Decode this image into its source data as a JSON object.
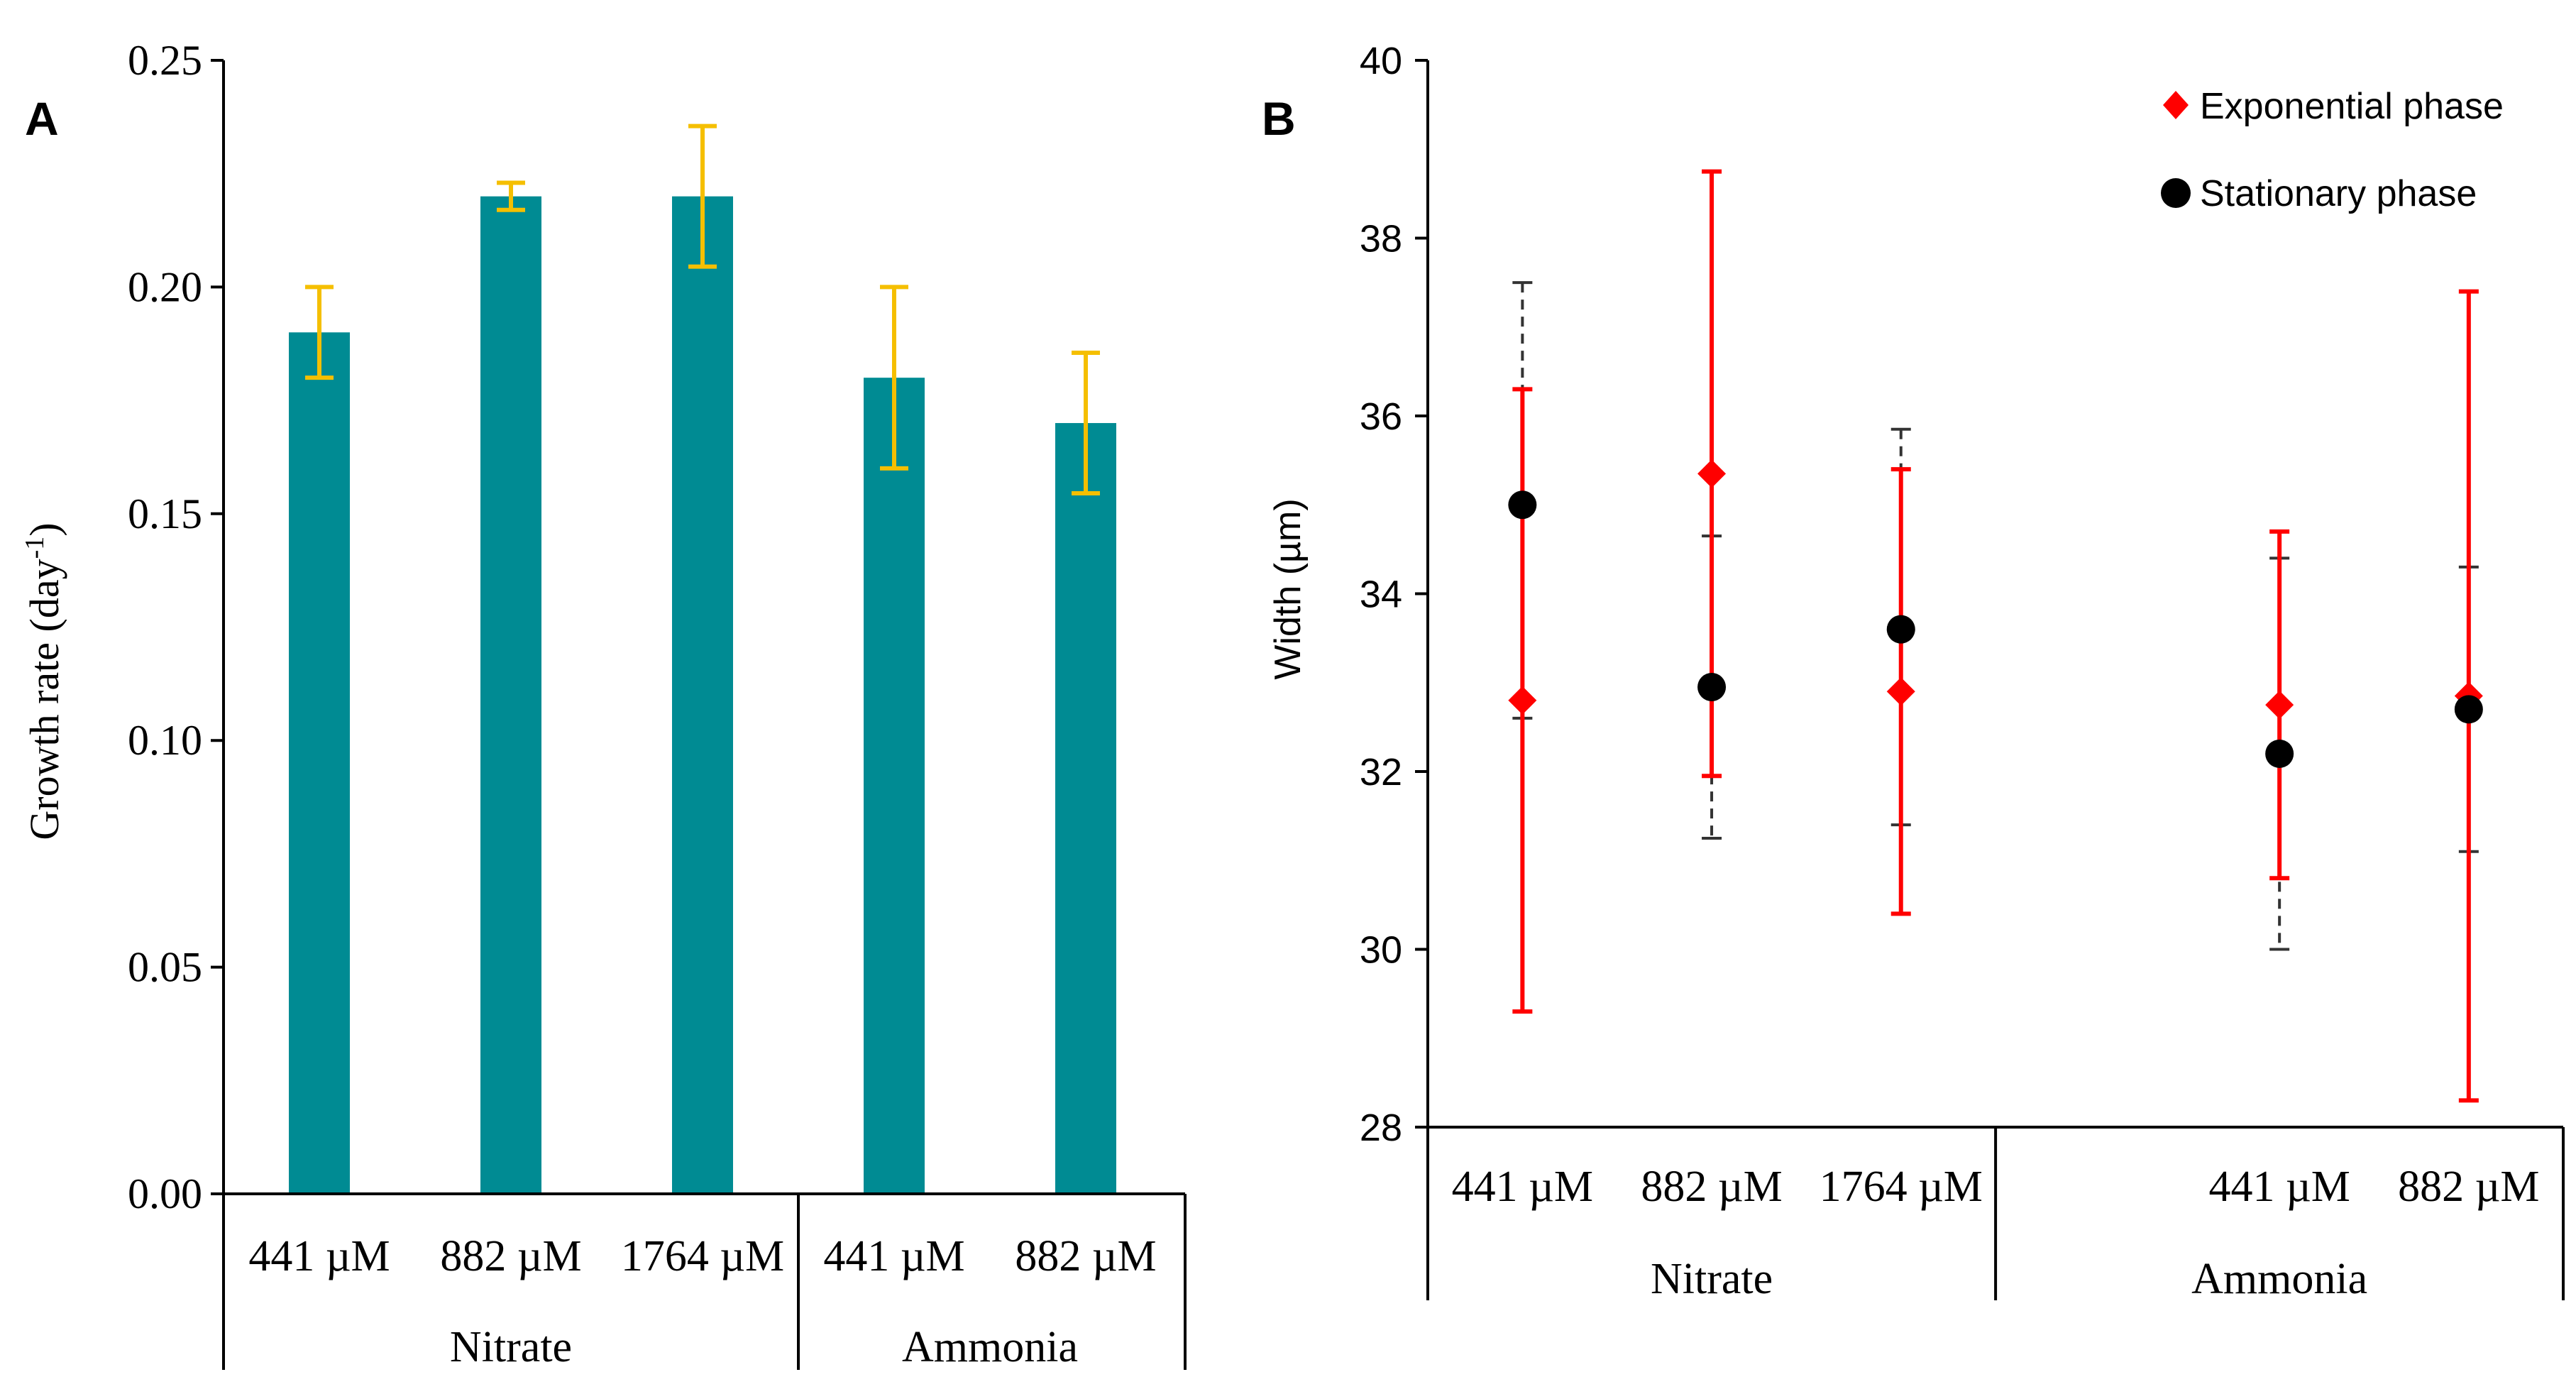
{
  "chart_data": [
    {
      "panel": "A",
      "type": "bar",
      "categories": [
        "441 µM",
        "882 µM",
        "1764 µM",
        "441 µM",
        "882 µM"
      ],
      "groups": [
        {
          "name": "Nitrate",
          "indices": [
            0,
            1,
            2
          ]
        },
        {
          "name": "Ammonia",
          "indices": [
            3,
            4
          ]
        }
      ],
      "series": [
        {
          "values": [
            0.19,
            0.22,
            0.22,
            0.18,
            0.17
          ],
          "error": [
            0.01,
            0.003,
            0.0155,
            0.02,
            0.0155
          ],
          "color": "#008B93",
          "error_color": "#F5BF00"
        }
      ],
      "ylabel": "Growth rate (day-1)",
      "ylabel_main": "Growth rate (day",
      "ylabel_sup": "-1",
      "ylabel_tail": ")",
      "ylim": [
        0,
        0.25
      ],
      "yticks": [
        "0.00",
        "0.05",
        "0.10",
        "0.15",
        "0.20",
        "0.25"
      ],
      "grid": false
    },
    {
      "panel": "B",
      "type": "scatter",
      "categories": [
        "441 µM",
        "882 µM",
        "1764 µM",
        "",
        "441 µM",
        "882 µM"
      ],
      "groups": [
        {
          "name": "Nitrate",
          "indices": [
            0,
            1,
            2
          ]
        },
        {
          "name": "Ammonia",
          "indices": [
            3,
            4,
            5
          ]
        }
      ],
      "series": [
        {
          "name": "Exponential phase",
          "marker": "diamond",
          "color": "#FF0000",
          "error_style": "solid",
          "points": [
            {
              "cat": 0,
              "y": 32.8,
              "low": 29.3,
              "high": 36.3
            },
            {
              "cat": 1,
              "y": 35.35,
              "low": 31.95,
              "high": 38.75
            },
            {
              "cat": 2,
              "y": 32.9,
              "low": 30.4,
              "high": 35.4
            },
            {
              "cat": 4,
              "y": 32.75,
              "low": 30.8,
              "high": 34.7
            },
            {
              "cat": 5,
              "y": 32.85,
              "low": 28.3,
              "high": 37.4
            }
          ]
        },
        {
          "name": "Stationary phase",
          "marker": "circle",
          "color": "#000000",
          "error_style": "dashed",
          "points": [
            {
              "cat": 0,
              "y": 35.0,
              "low": 32.6,
              "high": 37.5
            },
            {
              "cat": 1,
              "y": 32.95,
              "low": 31.25,
              "high": 34.65
            },
            {
              "cat": 2,
              "y": 33.6,
              "low": 31.4,
              "high": 35.85
            },
            {
              "cat": 4,
              "y": 32.2,
              "low": 30.0,
              "high": 34.4
            },
            {
              "cat": 5,
              "y": 32.7,
              "low": 31.1,
              "high": 34.3
            }
          ]
        }
      ],
      "ylabel": "Width (µm)",
      "ylim": [
        28,
        40
      ],
      "yticks": [
        "28",
        "30",
        "32",
        "34",
        "36",
        "38",
        "40"
      ],
      "legend_position": "top-right",
      "grid": false
    }
  ]
}
